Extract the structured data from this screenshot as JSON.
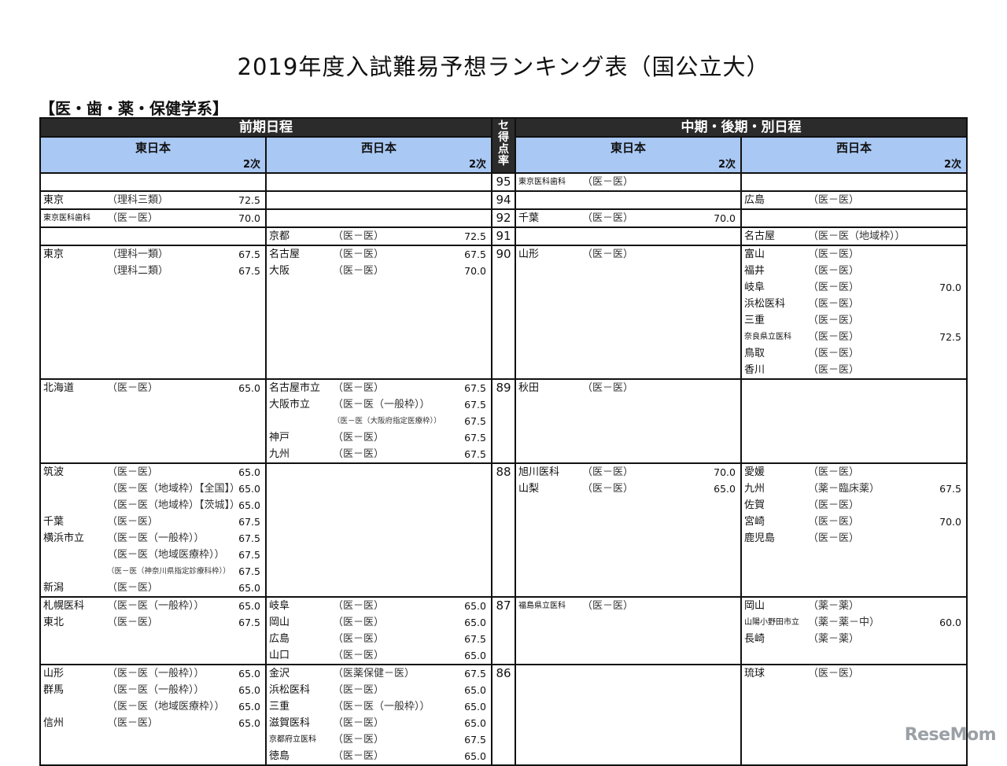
{
  "title": "2019年度入試難易予想ランキング表（国公立大）",
  "section": "【医・歯・薬・保健学系】",
  "headers": {
    "zenki": "前期日程",
    "chuki": "中期・後期・別日程",
    "score_col": [
      "セ",
      "得",
      "点",
      "率"
    ],
    "east": "東日本",
    "west": "西日本",
    "niji": "2次"
  },
  "rows": [
    {
      "score": "95",
      "ze": [],
      "zw": [],
      "ce": [
        {
          "n": "東京医科歯科",
          "c": "（医－医）",
          "s": ""
        }
      ],
      "cw": []
    },
    {
      "score": "94",
      "ze": [
        {
          "n": "東京",
          "c": "（理科三類）",
          "s": "72.5"
        }
      ],
      "zw": [],
      "ce": [],
      "cw": [
        {
          "n": "広島",
          "c": "（医－医）",
          "s": ""
        }
      ]
    },
    {
      "score": "92",
      "ze": [
        {
          "n": "東京医科歯科",
          "c": "（医－医）",
          "s": "70.0"
        }
      ],
      "zw": [],
      "ce": [
        {
          "n": "千葉",
          "c": "（医－医）",
          "s": "70.0"
        }
      ],
      "cw": []
    },
    {
      "score": "91",
      "ze": [],
      "zw": [
        {
          "n": "京都",
          "c": "（医－医）",
          "s": "72.5"
        }
      ],
      "ce": [],
      "cw": [
        {
          "n": "名古屋",
          "c": "（医－医（地域枠））",
          "s": ""
        }
      ]
    },
    {
      "score": "90",
      "ze": [
        {
          "n": "東京",
          "c": "（理科一類）",
          "s": "67.5"
        },
        {
          "n": "",
          "c": "（理科二類）",
          "s": "67.5"
        }
      ],
      "zw": [
        {
          "n": "名古屋",
          "c": "（医－医）",
          "s": "67.5"
        },
        {
          "n": "大阪",
          "c": "（医－医）",
          "s": "70.0"
        }
      ],
      "ce": [
        {
          "n": "山形",
          "c": "（医－医）",
          "s": ""
        }
      ],
      "cw": [
        {
          "n": "富山",
          "c": "（医－医）",
          "s": ""
        },
        {
          "n": "福井",
          "c": "（医－医）",
          "s": ""
        },
        {
          "n": "岐阜",
          "c": "（医－医）",
          "s": "70.0"
        },
        {
          "n": "浜松医科",
          "c": "（医－医）",
          "s": ""
        },
        {
          "n": "三重",
          "c": "（医－医）",
          "s": ""
        },
        {
          "n": "奈良県立医科",
          "c": "（医－医）",
          "s": "72.5"
        },
        {
          "n": "鳥取",
          "c": "（医－医）",
          "s": ""
        },
        {
          "n": "香川",
          "c": "（医－医）",
          "s": ""
        }
      ]
    },
    {
      "score": "89",
      "ze": [
        {
          "n": "北海道",
          "c": "（医－医）",
          "s": "65.0"
        }
      ],
      "zw": [
        {
          "n": "名古屋市立",
          "c": "（医－医）",
          "s": "67.5"
        },
        {
          "n": "大阪市立",
          "c": "（医－医（一般枠））",
          "s": "67.5"
        },
        {
          "n": "",
          "c": "（医－医（大阪府指定医療枠））",
          "s": "67.5"
        },
        {
          "n": "神戸",
          "c": "（医－医）",
          "s": "67.5"
        },
        {
          "n": "九州",
          "c": "（医－医）",
          "s": "67.5"
        }
      ],
      "ce": [
        {
          "n": "秋田",
          "c": "（医－医）",
          "s": ""
        }
      ],
      "cw": []
    },
    {
      "score": "88",
      "ze": [
        {
          "n": "筑波",
          "c": "（医－医）",
          "s": "65.0"
        },
        {
          "n": "",
          "c": "（医－医（地域枠）【全国】）",
          "s": "65.0"
        },
        {
          "n": "",
          "c": "（医－医（地域枠）【茨城】）",
          "s": "65.0"
        },
        {
          "n": "千葉",
          "c": "（医－医）",
          "s": "67.5"
        },
        {
          "n": "横浜市立",
          "c": "（医－医（一般枠））",
          "s": "67.5"
        },
        {
          "n": "",
          "c": "（医－医（地域医療枠））",
          "s": "67.5"
        },
        {
          "n": "",
          "c": "（医－医（神奈川県指定診療科枠））",
          "s": "67.5"
        },
        {
          "n": "新潟",
          "c": "（医－医）",
          "s": "65.0"
        }
      ],
      "zw": [],
      "ce": [
        {
          "n": "旭川医科",
          "c": "（医－医）",
          "s": "70.0"
        },
        {
          "n": "山梨",
          "c": "（医－医）",
          "s": "65.0"
        }
      ],
      "cw": [
        {
          "n": "愛媛",
          "c": "（医－医）",
          "s": ""
        },
        {
          "n": "九州",
          "c": "（薬－臨床薬）",
          "s": "67.5"
        },
        {
          "n": "佐賀",
          "c": "（医－医）",
          "s": ""
        },
        {
          "n": "宮崎",
          "c": "（医－医）",
          "s": "70.0"
        },
        {
          "n": "鹿児島",
          "c": "（医－医）",
          "s": ""
        }
      ]
    },
    {
      "score": "87",
      "ze": [
        {
          "n": "札幌医科",
          "c": "（医－医（一般枠））",
          "s": "65.0"
        },
        {
          "n": "東北",
          "c": "（医－医）",
          "s": "67.5"
        }
      ],
      "zw": [
        {
          "n": "岐阜",
          "c": "（医－医）",
          "s": "65.0"
        },
        {
          "n": "岡山",
          "c": "（医－医）",
          "s": "65.0"
        },
        {
          "n": "広島",
          "c": "（医－医）",
          "s": "67.5"
        },
        {
          "n": "山口",
          "c": "（医－医）",
          "s": "65.0"
        }
      ],
      "ce": [
        {
          "n": "福島県立医科",
          "c": "（医－医）",
          "s": ""
        }
      ],
      "cw": [
        {
          "n": "岡山",
          "c": "（薬－薬）",
          "s": ""
        },
        {
          "n": "山陽小野田市立",
          "c": "（薬－薬－中）",
          "s": "60.0"
        },
        {
          "n": "長崎",
          "c": "（薬－薬）",
          "s": ""
        }
      ]
    },
    {
      "score": "86",
      "ze": [
        {
          "n": "山形",
          "c": "（医－医（一般枠））",
          "s": "65.0"
        },
        {
          "n": "群馬",
          "c": "（医－医（一般枠））",
          "s": "65.0"
        },
        {
          "n": "",
          "c": "（医－医（地域医療枠））",
          "s": "65.0"
        },
        {
          "n": "信州",
          "c": "（医－医）",
          "s": "65.0"
        }
      ],
      "zw": [
        {
          "n": "金沢",
          "c": "（医薬保健－医）",
          "s": "67.5"
        },
        {
          "n": "浜松医科",
          "c": "（医－医）",
          "s": "65.0"
        },
        {
          "n": "三重",
          "c": "（医－医（一般枠））",
          "s": "65.0"
        },
        {
          "n": "滋賀医科",
          "c": "（医－医）",
          "s": "65.0"
        },
        {
          "n": "京都府立医科",
          "c": "（医－医）",
          "s": "67.5"
        },
        {
          "n": "徳島",
          "c": "（医－医）",
          "s": "65.0"
        }
      ],
      "ce": [],
      "cw": [
        {
          "n": "琉球",
          "c": "（医－医）",
          "s": ""
        }
      ]
    }
  ],
  "watermark": "ReseMom"
}
